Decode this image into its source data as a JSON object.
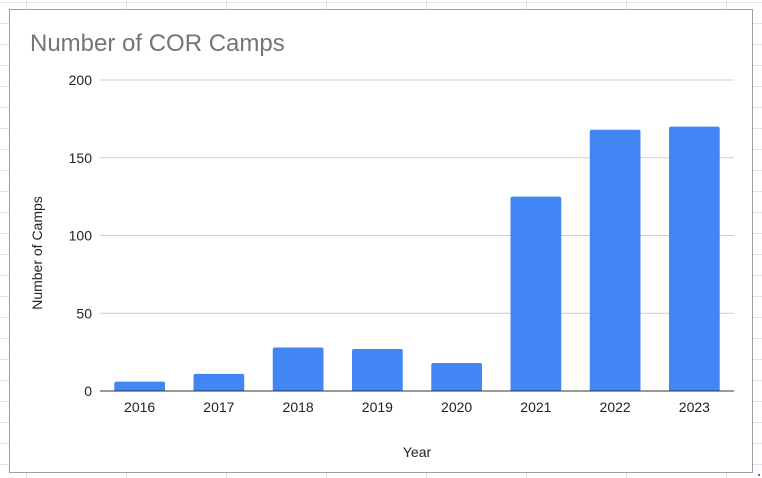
{
  "chart_data": {
    "type": "bar",
    "title": "Number of COR Camps",
    "xlabel": "Year",
    "ylabel": "Number of Camps",
    "categories": [
      "2016",
      "2017",
      "2018",
      "2019",
      "2020",
      "2021",
      "2022",
      "2023"
    ],
    "series": [
      {
        "values": [
          6,
          11,
          28,
          27,
          18,
          125,
          168,
          170
        ]
      }
    ],
    "ylim": [
      0,
      200
    ],
    "yticks": [
      0,
      50,
      100,
      150,
      200
    ],
    "grid": true,
    "legend": "none",
    "colors": {
      "bar": "#4285f4",
      "gridline": "#cccccc",
      "baseline": "#333333",
      "title": "#757575",
      "text": "#222222"
    }
  }
}
